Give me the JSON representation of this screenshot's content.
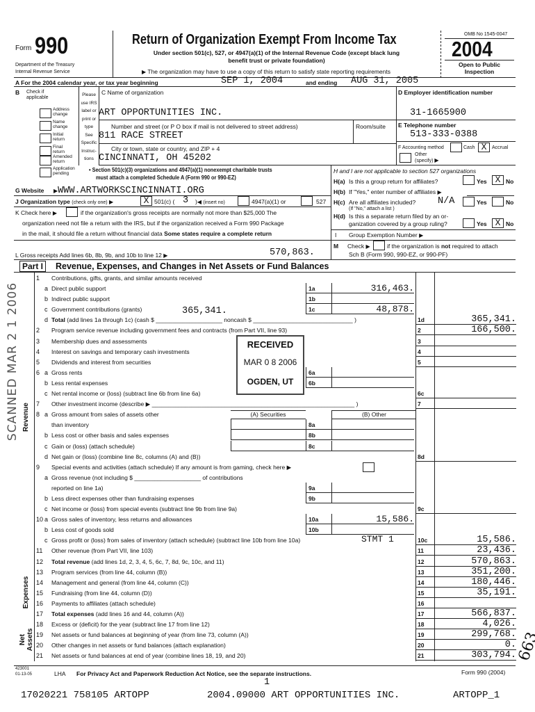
{
  "header": {
    "form_prefix": "Form",
    "form_number": "990",
    "dept_line1": "Department of the Treasury",
    "dept_line2": "Internal Revenue Service",
    "title": "Return of Organization Exempt From Income Tax",
    "subtitle_line1": "Under section 501(c), 527, or 4947(a)(1) of the Internal Revenue Code (except black lung",
    "subtitle_line2": "benefit trust or private foundation)",
    "state_note": "The organization may have to use a copy of this return to satisfy state reporting requirements",
    "omb": "OMB No 1545-0047",
    "year": "2004",
    "open_line1": "Open to Public",
    "open_line2": "Inspection"
  },
  "line_a": {
    "label": "A  For the 2004 calendar year, or tax year beginning",
    "begin": "SEP 1, 2004",
    "and_ending": "and ending",
    "end": "AUG 31, 2005"
  },
  "section_b": {
    "label": "B",
    "check_if": "Check if",
    "applicable": "applicable",
    "checks": [
      {
        "l1": "Address",
        "l2": "change",
        "checked": false
      },
      {
        "l1": "Name",
        "l2": "change",
        "checked": false
      },
      {
        "l1": "Initial",
        "l2": "return",
        "checked": false
      },
      {
        "l1": "Final",
        "l2": "return",
        "checked": false
      },
      {
        "l1": "Amended",
        "l2": "return",
        "checked": false
      },
      {
        "l1": "Application",
        "l2": "pending",
        "checked": false
      }
    ],
    "please_lines": [
      "Please",
      "use IRS",
      "label or",
      "print or",
      "type",
      "See",
      "Specific",
      "Instruc-",
      "tions"
    ]
  },
  "org": {
    "name_label": "C Name of organization",
    "name": "ART OPPORTUNITIES INC.",
    "street_label": "Number and street (or P O  box if mail is not delivered to street address)",
    "room_label": "Room/suite",
    "street": "811 RACE STREET",
    "city_label": "City or town, state or country, and ZIP + 4",
    "city": "CINCINNATI, OH  45202",
    "ein_label": "D Employer identification number",
    "ein": "31-1665900",
    "phone_label": "E Telephone number",
    "phone": "513-333-0388",
    "acct_label": "F Accounting method",
    "cash": "Cash",
    "accrual": "Accrual",
    "accrual_mark": "X",
    "other_l1": "Other",
    "other_l2": "(specify)"
  },
  "schedule_a_note_line1": "• Section 501(c)(3) organizations and 4947(a)(1) nonexempt charitable trusts",
  "schedule_a_note_line2": "must attach a completed Schedule A (Form 990 or 990-EZ)",
  "h_section": {
    "header": "H and I are not applicable to section 527 organizations",
    "ha_label": "H(a)",
    "ha": "Is this a group return for affiliates?",
    "hb_label": "H(b)",
    "hb": "If \"Yes,\" enter number of affiliates",
    "hc_label": "H(c)",
    "hc": "Are all affiliates included?",
    "hc_value": "N/A",
    "hc_note": "(If \"No,\" attach a list )",
    "hd_label": "H(d)",
    "hd_l1": "Is this a separate return filed by an or-",
    "hd_l2": "ganization covered by a group ruling?",
    "yes": "Yes",
    "no": "No",
    "ha_answer": "X",
    "hd_answer": "X",
    "i_label": "I",
    "i_text": "Group Exemption Number",
    "m_label": "M",
    "m_l1a": "Check",
    "m_l1b": "if the organization is",
    "m_not": "not",
    "m_l1c": "required to attach",
    "m_l2": "Sch  B (Form 990, 990-EZ, or 990-PF)"
  },
  "g_section": {
    "label": "G  Website",
    "website": "WWW.ARTWORKSCINCINNATI.ORG"
  },
  "j_section": {
    "label": "J  Organization type",
    "check_one": "(check only one)",
    "mark": "X",
    "c501": "501(c) (",
    "c501_num": "3",
    "insert": "(insert no)",
    "o4947": "4947(a)(1) or",
    "o527": "527"
  },
  "k_section": {
    "l1a": "K  Check here",
    "l1b": "if the organization's gross receipts are normally not more than $25,000  The",
    "l2": "organization need not file a return with the IRS, but if the organization received a Form 990 Package",
    "l3a": "in the mail, it should file a return without financial data",
    "l3b": "Some states require a complete return"
  },
  "l_section": {
    "label": "L  Gross receipts  Add lines 6b, 8b, 9b, and 10b to line 12",
    "value": "570,863."
  },
  "part1": {
    "part_label": "Part I",
    "title": "Revenue, Expenses, and Changes in Net Assets or Fund Balances",
    "sections": {
      "revenue": "Revenue",
      "expenses": "Expenses",
      "net_assets_1": "Net",
      "net_assets_2": "Assets"
    },
    "col_a": "(A) Securities",
    "col_b": "(B) Other",
    "rows": [
      {
        "n": "1",
        "text": "Contributions, gifts, grants, and similar amounts received"
      },
      {
        "l": "a",
        "text": "Direct public support",
        "box": "1a",
        "box_val": "316,463."
      },
      {
        "l": "b",
        "text": "Indirect public support",
        "box": "1b"
      },
      {
        "l": "c",
        "text": "Government contributions (grants)",
        "box": "1c",
        "box_val": "48,878."
      },
      {
        "l": "d",
        "bold": "Total",
        "text": " (add lines 1a through 1c) (cash $ ____________________ noncash $ ______________________________ )",
        "inline": "365,341.",
        "col": "1d",
        "col_val": "365,341."
      },
      {
        "n": "2",
        "text": "Program service revenue including government fees and contracts (from Part VII, line 93)",
        "col": "2",
        "col_val": "166,500."
      },
      {
        "n": "3",
        "text": "Membership dues and assessments",
        "col": "3"
      },
      {
        "n": "4",
        "text": "Interest on savings and temporary cash investments",
        "col": "4"
      },
      {
        "n": "5",
        "text": "Dividends and interest from securities",
        "col": "5"
      },
      {
        "n": "6",
        "l": "a",
        "text": "Gross rents",
        "box": "6a"
      },
      {
        "l": "b",
        "text": "Less  rental expenses",
        "box": "6b"
      },
      {
        "l": "c",
        "text": "Net rental income or (loss) (subtract line 6b from line 6a)",
        "col": "6c"
      },
      {
        "n": "7",
        "text": "Other investment income (describe ▶ _____________________________________________________________ )",
        "col": "7"
      },
      {
        "n": "8",
        "l": "a",
        "text": "Gross amount from sales of assets other",
        "cols_header": true
      },
      {
        "text": "than inventory",
        "box": "8a",
        "dual": true
      },
      {
        "l": "b",
        "text": "Less  cost or other basis and sales expenses",
        "box": "8b",
        "dual": true
      },
      {
        "l": "c",
        "text": "Gain or (loss) (attach schedule)",
        "box": "8c",
        "dual": true
      },
      {
        "l": "d",
        "text": "Net gain or (loss) (combine line 8c, columns (A) and (B))",
        "col": "8d"
      },
      {
        "n": "9",
        "text": "Special events and activities (attach schedule)  If any amount is from gaming, check here ▶",
        "checkbox": true
      },
      {
        "l": "a",
        "text": "Gross revenue (not including $ ____________________ of contributions"
      },
      {
        "text": "reported on line 1a)",
        "box": "9a"
      },
      {
        "l": "b",
        "text": "Less  direct expenses other than fundraising expenses",
        "box": "9b"
      },
      {
        "l": "c",
        "text": "Net income or (loss) from special events (subtract line 9b from line 9a)",
        "col": "9c"
      },
      {
        "n": "10",
        "l": "a",
        "text": "Gross sales of inventory, less returns and allowances",
        "box": "10a",
        "box_val": "15,586."
      },
      {
        "l": "b",
        "text": "Less  cost of goods sold",
        "box": "10b"
      },
      {
        "l": "c",
        "text": "Gross profit or (loss) from sales of inventory (attach schedule) (subtract line 10b from line 10a)",
        "note": "STMT 1",
        "col": "10c",
        "col_val": "15,586."
      },
      {
        "n": "11",
        "text": "Other revenue (from Part VII, line 103)",
        "col": "11",
        "col_val": "23,436."
      },
      {
        "n": "12",
        "bold": "Total revenue",
        "text": " (add lines 1d, 2, 3, 4, 5, 6c, 7, 8d, 9c, 10c, and 11)",
        "col": "12",
        "col_val": "570,863."
      },
      {
        "n": "13",
        "text": "Program services (from line 44, column (B))",
        "col": "13",
        "col_val": "351,200."
      },
      {
        "n": "14",
        "text": "Management and general (from line 44, column (C))",
        "col": "14",
        "col_val": "180,446."
      },
      {
        "n": "15",
        "text": "Fundraising (from line 44, column (D))",
        "col": "15",
        "col_val": "35,191."
      },
      {
        "n": "16",
        "text": "Payments to affiliates (attach schedule)",
        "col": "16"
      },
      {
        "n": "17",
        "bold": "Total expenses",
        "text": " (add lines 16 and 44, column (A))",
        "col": "17",
        "col_val": "566,837."
      },
      {
        "n": "18",
        "text": "Excess or (deficit) for the year (subtract line 17 from line 12)",
        "col": "18",
        "col_val": "4,026."
      },
      {
        "n": "19",
        "text": "Net assets or fund balances at beginning of year (from line 73, column (A))",
        "col": "19",
        "col_val": "299,768."
      },
      {
        "n": "20",
        "text": "Other changes in net assets or fund balances (attach explanation)",
        "col": "20",
        "col_val": "0."
      },
      {
        "n": "21",
        "text": "Net assets or fund balances at end of year (combine lines 18, 19, and 20)",
        "col": "21",
        "col_val": "303,794."
      }
    ]
  },
  "footer": {
    "code1": "423001",
    "code2": "01-13-05",
    "lha": "LHA",
    "privacy": "For Privacy Act and Paperwork Reduction Act Notice, see the separate instructions.",
    "form_ref": "Form 990 (2004)",
    "page": "1",
    "batch_left": "17020221 758105 ARTOPP",
    "batch_mid": "2004.09000 ART OPPORTUNITIES INC.",
    "batch_right": "ARTOPP_1"
  },
  "stamps": {
    "scanned": "SCANNED  MAR 2 1 2006",
    "received": "RECEIVED",
    "received_date": "MAR 0 8 2006",
    "received_place": "OGDEN, UT",
    "handwritten": "663"
  }
}
